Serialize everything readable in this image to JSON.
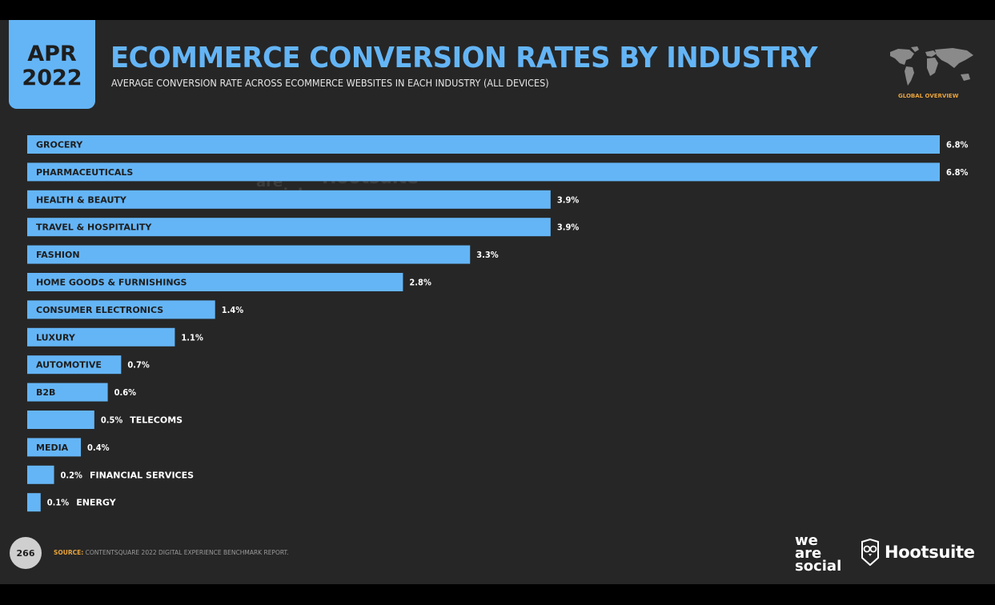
{
  "header": {
    "date_month": "APR",
    "date_year": "2022",
    "title": "ECOMMERCE CONVERSION RATES BY INDUSTRY",
    "subtitle": "AVERAGE CONVERSION RATE ACROSS ECOMMERCE WEBSITES IN EACH INDUSTRY (ALL DEVICES)",
    "map_caption": "GLOBAL OVERVIEW"
  },
  "footer": {
    "page_number": "266",
    "source_label": "SOURCE:",
    "source_text": "CONTENTSQUARE 2022 DIGITAL EXPERIENCE BENCHMARK REPORT.",
    "logo_wearesocial": [
      "we",
      "are",
      "social"
    ],
    "logo_hootsuite": "Hootsuite"
  },
  "watermark": {
    "wearesocial": [
      "we",
      "are",
      "social"
    ],
    "hootsuite": "Hootsuite"
  },
  "colors": {
    "accent": "#64b5f6",
    "background": "#262626",
    "highlight": "#e8a33d"
  },
  "chart_data": {
    "type": "bar",
    "orientation": "horizontal",
    "categories": [
      "GROCERY",
      "PHARMACEUTICALS",
      "HEALTH & BEAUTY",
      "TRAVEL & HOSPITALITY",
      "FASHION",
      "HOME GOODS & FURNISHINGS",
      "CONSUMER ELECTRONICS",
      "LUXURY",
      "AUTOMOTIVE",
      "B2B",
      "TELECOMS",
      "MEDIA",
      "FINANCIAL SERVICES",
      "ENERGY"
    ],
    "values": [
      6.8,
      6.8,
      3.9,
      3.9,
      3.3,
      2.8,
      1.4,
      1.1,
      0.7,
      0.6,
      0.5,
      0.4,
      0.2,
      0.1
    ],
    "value_labels": [
      "6.8%",
      "6.8%",
      "3.9%",
      "3.9%",
      "3.3%",
      "2.8%",
      "1.4%",
      "1.1%",
      "0.7%",
      "0.6%",
      "0.5%",
      "0.4%",
      "0.2%",
      "0.1%"
    ],
    "title": "ECOMMERCE CONVERSION RATES BY INDUSTRY",
    "xlabel": "",
    "ylabel": "",
    "xlim": [
      0,
      6.8
    ],
    "grid": false,
    "legend": "none",
    "bar_color": "#64b5f6"
  }
}
